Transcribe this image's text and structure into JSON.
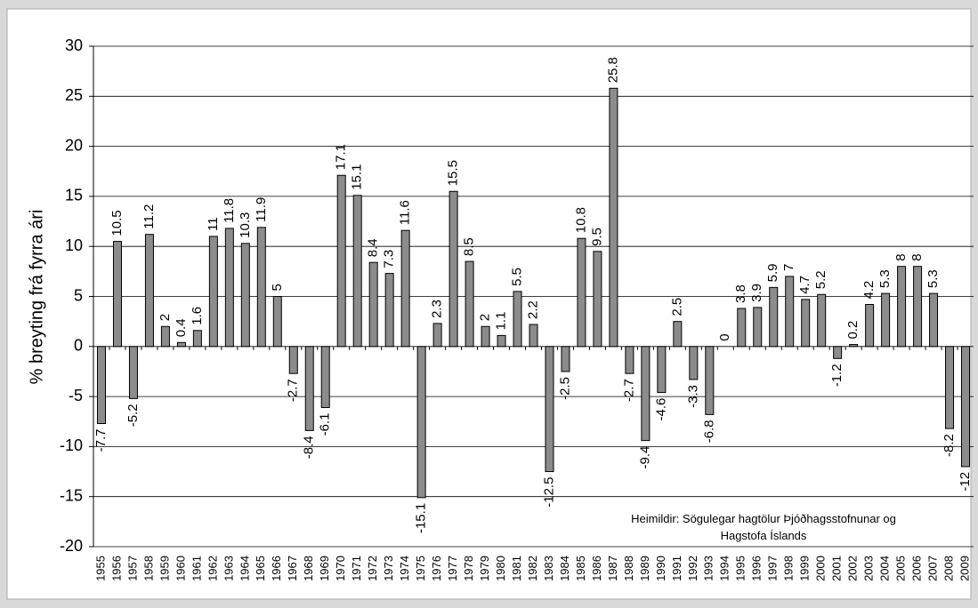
{
  "chart_data": {
    "type": "bar",
    "y_label": "% breyting frá fyrra ári",
    "annotation": [
      "Heimildir: Sögulegar hagtölur Þjóðhagsstofnunar og",
      "Hagstofa Íslands"
    ],
    "categories": [
      "1955",
      "1956",
      "1957",
      "1958",
      "1959",
      "1960",
      "1961",
      "1962",
      "1963",
      "1964",
      "1965",
      "1966",
      "1967",
      "1968",
      "1969",
      "1970",
      "1971",
      "1972",
      "1973",
      "1974",
      "1975",
      "1976",
      "1977",
      "1978",
      "1979",
      "1980",
      "1981",
      "1982",
      "1983",
      "1984",
      "1985",
      "1986",
      "1987",
      "1988",
      "1989",
      "1990",
      "1991",
      "1992",
      "1993",
      "1994",
      "1995",
      "1996",
      "1997",
      "1998",
      "1999",
      "2000",
      "2001",
      "2002",
      "2003",
      "2004",
      "2005",
      "2006",
      "2007",
      "2008",
      "2009"
    ],
    "values": [
      -7.7,
      10.5,
      -5.2,
      11.2,
      2,
      0.4,
      1.6,
      11,
      11.8,
      10.3,
      11.9,
      5,
      -2.7,
      -8.4,
      -6.1,
      17.1,
      15.1,
      8.4,
      7.3,
      11.6,
      -15.1,
      2.3,
      15.5,
      8.5,
      2,
      1.1,
      5.5,
      2.2,
      -12.5,
      -2.5,
      10.8,
      9.5,
      25.8,
      -2.7,
      -9.4,
      -4.6,
      2.5,
      -3.3,
      -6.8,
      0,
      3.8,
      3.9,
      5.9,
      7,
      4.7,
      5.2,
      -1.2,
      0.2,
      4.2,
      5.3,
      8,
      8,
      5.3,
      -8.2,
      -12
    ],
    "color": "#8c8c8c",
    "ylim": [
      -20,
      30
    ],
    "yticks": [
      -20,
      -15,
      -10,
      -5,
      0,
      5,
      10,
      15,
      20,
      25,
      30
    ],
    "grid": true
  }
}
